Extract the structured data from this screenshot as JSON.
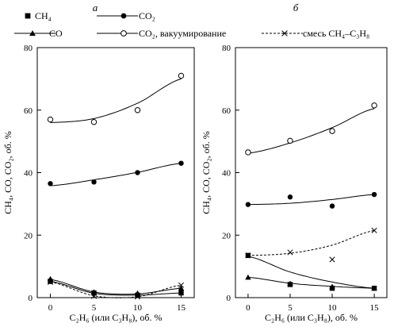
{
  "legend": [
    {
      "series": "CH4",
      "marker": "square-filled",
      "line": "solid",
      "label": "CH₄"
    },
    {
      "series": "CO2",
      "marker": "circle-filled",
      "line": "solid",
      "label": "CO₂"
    },
    {
      "series": "CO",
      "marker": "triangle-filled",
      "line": "solid",
      "label": "CO"
    },
    {
      "series": "CO2_vac",
      "marker": "circle-open",
      "line": "solid",
      "label": "CO₂, вакуумирование"
    },
    {
      "series": "mix",
      "marker": "cross",
      "line": "dashed",
      "label": "смесь CH₄–C₃H₈"
    }
  ],
  "chart_data": [
    {
      "type": "scatter",
      "panel": "а",
      "xlabel": "C₂H₆ (или C₃H₈), об. %",
      "ylabel": "CH₄, CO, CO₂, об. %",
      "xticks": [
        0,
        5,
        10,
        15
      ],
      "yticks": [
        0,
        20,
        40,
        60,
        80
      ],
      "xlim": [
        -1.5,
        16.5
      ],
      "ylim": [
        0,
        80
      ],
      "grid": false,
      "series": [
        {
          "name": "CO₂, вакуумирование",
          "marker": "circle-open",
          "line": "solid",
          "x": [
            0,
            5,
            10,
            15
          ],
          "y": [
            57,
            56.2,
            60,
            71
          ],
          "fit": [
            56,
            57.3,
            62.2,
            70
          ]
        },
        {
          "name": "CO₂",
          "marker": "circle-filled",
          "line": "solid",
          "x": [
            0,
            5,
            10,
            15
          ],
          "y": [
            36.5,
            37,
            40,
            43
          ],
          "fit": [
            35.8,
            37.7,
            40.1,
            43
          ]
        },
        {
          "name": "CO",
          "marker": "triangle-filled",
          "line": "solid",
          "x": [
            0,
            5,
            10,
            15
          ],
          "y": [
            6,
            1.8,
            1.4,
            3
          ],
          "fit": [
            5.8,
            1.8,
            1.2,
            3
          ]
        },
        {
          "name": "CH₄",
          "marker": "square-filled",
          "line": "solid",
          "x": [
            0,
            5,
            10,
            15
          ],
          "y": [
            5.2,
            1.5,
            0.8,
            1.5
          ],
          "fit": [
            5.2,
            1.4,
            0.8,
            1.5
          ]
        },
        {
          "name": "смесь CH₄–C₃H₈",
          "marker": "cross",
          "line": "dashed",
          "x": [
            0,
            5,
            10,
            15
          ],
          "y": [
            5,
            0.5,
            0.3,
            4
          ],
          "fit": [
            5,
            0.6,
            0.3,
            4
          ]
        }
      ]
    },
    {
      "type": "scatter",
      "panel": "б",
      "xlabel": "C₂H₆ (или C₃H₈), об. %",
      "ylabel": "CH₄, CO, CO₂, об. %",
      "xticks": [
        0,
        5,
        10,
        15
      ],
      "yticks": [
        0,
        20,
        40,
        60,
        80
      ],
      "xlim": [
        -1.5,
        16.5
      ],
      "ylim": [
        0,
        80
      ],
      "grid": false,
      "series": [
        {
          "name": "CO₂, вакуумирование",
          "marker": "circle-open",
          "line": "solid",
          "x": [
            0,
            5,
            10,
            15
          ],
          "y": [
            46.5,
            50.2,
            53.3,
            61.5
          ],
          "fit": [
            46.2,
            49.5,
            54.4,
            60.5
          ]
        },
        {
          "name": "CO₂",
          "marker": "circle-filled",
          "line": "solid",
          "x": [
            0,
            5,
            10,
            15
          ],
          "y": [
            29.8,
            32.2,
            29.3,
            33
          ],
          "fit": [
            29.8,
            30.2,
            31.4,
            33
          ]
        },
        {
          "name": "смесь CH₄–C₃H₈",
          "marker": "cross",
          "line": "dashed",
          "x": [
            0,
            5,
            10,
            15
          ],
          "y": [
            13.5,
            14.5,
            12.2,
            21.5
          ],
          "fit": [
            13.5,
            14.2,
            16.8,
            21.5
          ]
        },
        {
          "name": "CO",
          "marker": "triangle-filled",
          "line": "solid",
          "x": [
            0,
            5,
            10,
            15
          ],
          "y": [
            6.5,
            4.5,
            3.5,
            3
          ],
          "fit": [
            6.5,
            4.6,
            3.6,
            3
          ]
        },
        {
          "name": "CH₄",
          "marker": "square-filled",
          "line": "solid",
          "x": [
            0,
            5,
            10,
            15
          ],
          "y": [
            13.5,
            4.2,
            3,
            3
          ],
          "fit": [
            13.2,
            8.2,
            5,
            3
          ]
        }
      ]
    }
  ]
}
